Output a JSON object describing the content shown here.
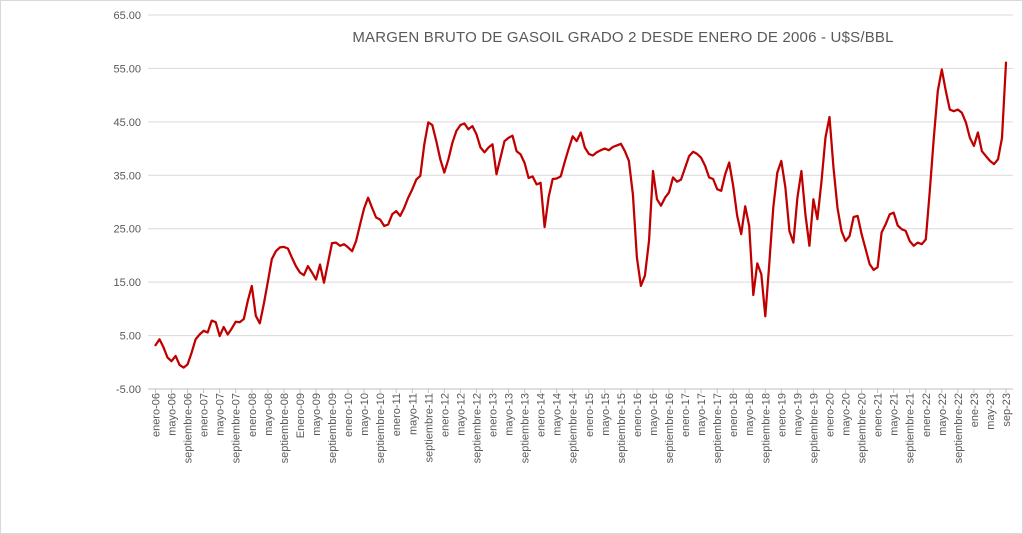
{
  "chart_data": {
    "type": "line",
    "title": "MARGEN BRUTO DE GASOIL GRADO 2 DESDE ENERO DE 2006 - U$S/BBL",
    "x_start": "enero-06",
    "x_end": "sep-23",
    "x_interval": "monthly",
    "x_tick_every_n_months": 4,
    "x_tick_labels": [
      "enero-06",
      "mayo-06",
      "septiembre-06",
      "enero-07",
      "mayo-07",
      "septiembre-07",
      "enero-08",
      "mayo-08",
      "septiembre-08",
      "Enero-09",
      "mayo-09",
      "septiembre-09",
      "enero-10",
      "mayo-10",
      "septiembre-10",
      "enero-11",
      "mayo-11",
      "septiembre-11",
      "enero-12",
      "mayo-12",
      "septiembre-12",
      "enero-13",
      "mayo-13",
      "septiembre-13",
      "enero-14",
      "mayo-14",
      "septiembre-14",
      "enero-15",
      "mayo-15",
      "septiembre-15",
      "enero-16",
      "mayo-16",
      "septiembre-16",
      "enero-17",
      "mayo-17",
      "septiembre-17",
      "enero-18",
      "mayo-18",
      "septiembre-18",
      "enero-19",
      "mayo-19",
      "septiembre-19",
      "enero-20",
      "mayo-20",
      "septiembre-20",
      "enero-21",
      "mayo-21",
      "septiembre-21",
      "enero-22",
      "mayo-22",
      "septiembre-22",
      "ene-23",
      "may-23",
      "sep-23"
    ],
    "y_tick_labels": [
      "65.00",
      "55.00",
      "45.00",
      "35.00",
      "25.00",
      "15.00",
      "5.00",
      "-5.00"
    ],
    "ylim": [
      -5,
      65
    ],
    "y_major_unit": 10,
    "grid": "horizontal",
    "legend": "none",
    "values": [
      3.2,
      4.3,
      2.8,
      0.9,
      0.2,
      1.2,
      -0.5,
      -1.0,
      -0.4,
      1.8,
      4.3,
      5.2,
      5.9,
      5.6,
      7.8,
      7.5,
      4.9,
      6.6,
      5.2,
      6.3,
      7.6,
      7.5,
      8.1,
      11.5,
      14.3,
      8.7,
      7.3,
      10.9,
      15.0,
      19.3,
      20.8,
      21.5,
      21.6,
      21.3,
      19.6,
      18.0,
      16.8,
      16.3,
      18.0,
      16.8,
      15.5,
      18.3,
      14.9,
      18.6,
      22.3,
      22.4,
      21.8,
      22.1,
      21.5,
      20.8,
      22.7,
      25.8,
      28.8,
      30.8,
      28.9,
      27.1,
      26.7,
      25.5,
      25.8,
      27.7,
      28.3,
      27.4,
      28.9,
      30.8,
      32.4,
      34.2,
      34.9,
      40.8,
      44.9,
      44.4,
      41.4,
      38.0,
      35.5,
      38.0,
      41.1,
      43.3,
      44.4,
      44.7,
      43.6,
      44.2,
      42.7,
      40.2,
      39.3,
      40.2,
      40.8,
      35.2,
      38.3,
      41.4,
      42.0,
      42.4,
      39.5,
      38.9,
      37.3,
      34.5,
      34.8,
      33.3,
      33.6,
      25.3,
      31.0,
      34.3,
      34.4,
      34.8,
      37.5,
      40.0,
      42.3,
      41.4,
      43.0,
      40.2,
      39.0,
      38.7,
      39.3,
      39.7,
      40.0,
      39.7,
      40.3,
      40.6,
      40.9,
      39.5,
      37.7,
      31.4,
      19.6,
      14.3,
      16.2,
      22.7,
      35.8,
      30.5,
      29.3,
      30.8,
      31.8,
      34.6,
      33.8,
      34.2,
      36.4,
      38.6,
      39.4,
      39.0,
      38.3,
      36.8,
      34.6,
      34.3,
      32.4,
      32.1,
      35.2,
      37.4,
      33.0,
      27.4,
      24.0,
      29.2,
      25.5,
      12.6,
      18.5,
      16.5,
      8.6,
      18.5,
      29.0,
      35.5,
      37.7,
      32.7,
      24.6,
      22.4,
      30.8,
      35.8,
      27.7,
      21.8,
      30.5,
      26.8,
      33.9,
      42.1,
      45.9,
      36.4,
      28.9,
      24.6,
      22.7,
      23.6,
      27.2,
      27.4,
      24.0,
      21.2,
      18.4,
      17.3,
      17.8,
      24.3,
      25.8,
      27.7,
      28.0,
      25.6,
      24.9,
      24.6,
      22.7,
      21.8,
      22.4,
      22.1,
      23.0,
      32.1,
      42.0,
      50.8,
      54.8,
      50.8,
      47.3,
      47.0,
      47.3,
      46.7,
      44.9,
      42.0,
      40.5,
      43.0,
      39.5,
      38.6,
      37.7,
      37.1,
      38.0,
      42.0,
      56.1
    ],
    "colors": {
      "line": "#C00000",
      "gridline": "#D9D9D9",
      "axis_line": "#BFBFBF",
      "tick_text": "#595959",
      "title_text": "#595959",
      "background": "#FFFFFF",
      "border": "#D9D9D9"
    }
  }
}
